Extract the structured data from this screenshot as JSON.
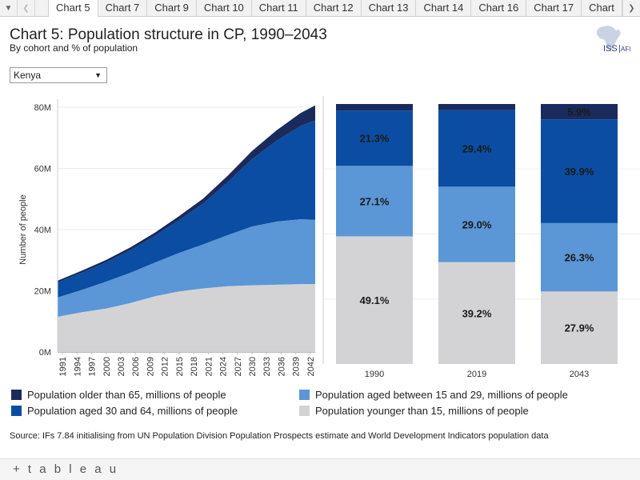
{
  "tabbar": {
    "tabs": [
      "Chart 5",
      "Chart 7",
      "Chart 9",
      "Chart 10",
      "Chart 11",
      "Chart 12",
      "Chart 13",
      "Chart 14",
      "Chart 16",
      "Chart 17",
      "Chart"
    ],
    "active_index": 0,
    "menu_icon": "caret-down-icon",
    "prev_icon": "chevron-left-icon",
    "next_icon": "chevron-right-icon"
  },
  "header": {
    "title": "Chart 5: Population structure in CP, 1990–2043",
    "subtitle": "By cohort and % of population"
  },
  "logo": {
    "text_left": "ISS",
    "text_right": "AFI"
  },
  "filter": {
    "selected": "Kenya"
  },
  "colors": {
    "older_65": "#1b2a5c",
    "aged_30_64": "#0a4da2",
    "aged_15_29": "#5b96d6",
    "younger_15": "#d3d3d5"
  },
  "chart_data": [
    {
      "type": "area",
      "stacked": true,
      "ylabel": "Number of people",
      "ylim": [
        0,
        80
      ],
      "y_ticks": [
        0,
        20,
        40,
        60,
        80
      ],
      "y_tick_labels": [
        "0M",
        "20M",
        "40M",
        "60M",
        "80M"
      ],
      "x_tick_labels": [
        "1991",
        "1994",
        "1997",
        "2000",
        "2003",
        "2006",
        "2009",
        "2012",
        "2015",
        "2018",
        "2021",
        "2024",
        "2027",
        "2030",
        "2033",
        "2036",
        "2039",
        "2042"
      ],
      "x": [
        1990,
        1995,
        2000,
        2005,
        2010,
        2015,
        2020,
        2025,
        2030,
        2035,
        2040,
        2043
      ],
      "series": [
        {
          "name": "Population younger than 15, millions of people",
          "values": [
            11.5,
            13.0,
            14.2,
            16.0,
            18.2,
            19.8,
            20.8,
            21.5,
            21.8,
            22.0,
            22.2,
            22.2
          ]
        },
        {
          "name": "Population aged between 15 and 29, millions of people",
          "values": [
            6.3,
            7.3,
            8.8,
            9.9,
            11.0,
            12.6,
            14.4,
            16.7,
            19.2,
            20.6,
            21.2,
            21.0
          ]
        },
        {
          "name": "Population aged 30 and 64, millions of people",
          "values": [
            4.9,
            5.6,
            6.3,
            7.4,
            8.7,
            10.7,
            13.4,
            17.3,
            22.0,
            26.4,
            30.5,
            32.5
          ]
        },
        {
          "name": "Population older than 65, millions of people",
          "values": [
            0.6,
            0.7,
            0.8,
            0.9,
            1.1,
            1.3,
            1.6,
            2.1,
            2.7,
            3.4,
            4.2,
            4.9
          ]
        }
      ]
    },
    {
      "type": "bar",
      "stacked": true,
      "percent": true,
      "categories": [
        "1990",
        "2019",
        "2043"
      ],
      "series": [
        {
          "name": "Population younger than 15, millions of people",
          "values": [
            49.1,
            39.2,
            27.9
          ],
          "labels": [
            "49.1%",
            "39.2%",
            "27.9%"
          ]
        },
        {
          "name": "Population aged between 15 and 29, millions of people",
          "values": [
            27.1,
            29.0,
            26.3
          ],
          "labels": [
            "27.1%",
            "29.0%",
            "26.3%"
          ]
        },
        {
          "name": "Population aged 30 and 64, millions of people",
          "values": [
            21.3,
            29.4,
            39.9
          ],
          "labels": [
            "21.3%",
            "29.4%",
            "39.9%"
          ]
        },
        {
          "name": "Population older than 65, millions of people",
          "values": [
            2.5,
            2.4,
            5.9
          ],
          "labels": [
            "",
            "",
            "5.9%"
          ]
        }
      ]
    }
  ],
  "legend": [
    {
      "label": "Population older than 65, millions of people",
      "color": "#1b2a5c"
    },
    {
      "label": "Population aged between 15 and 29, millions of people",
      "color": "#5b96d6"
    },
    {
      "label": "Population aged 30 and 64, millions of people",
      "color": "#0a4da2"
    },
    {
      "label": "Population younger than 15, millions of people",
      "color": "#d3d3d5"
    }
  ],
  "source": "Source: IFs 7.84 initialising from UN Population Division Population Prospects estimate and World Development Indicators population data",
  "footer": {
    "brand": "+ t a b l e a u"
  }
}
